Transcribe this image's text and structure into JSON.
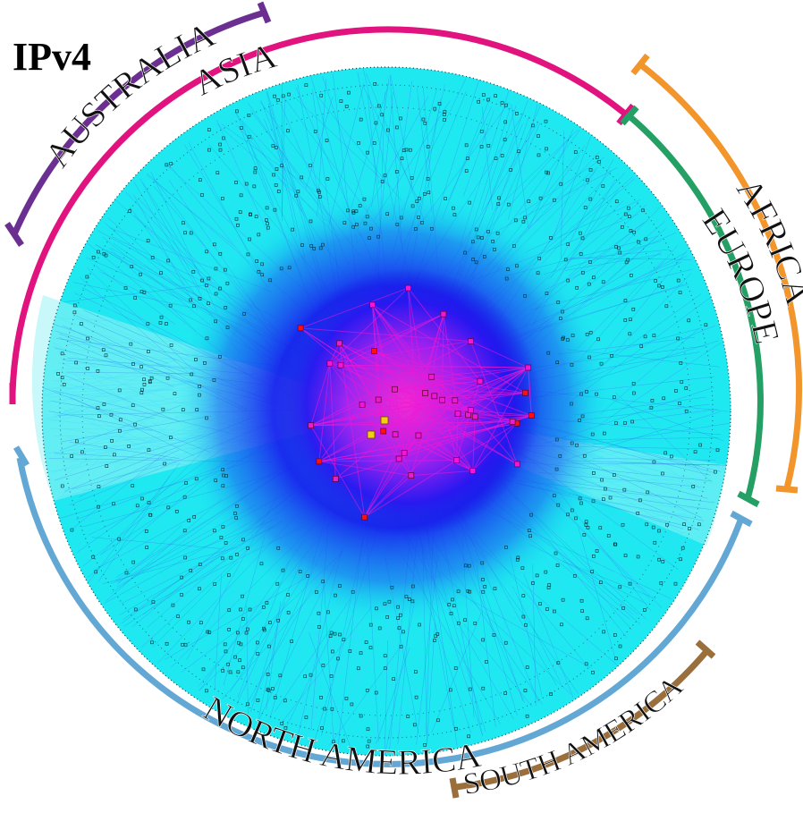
{
  "title": "IPv4",
  "regions": [
    {
      "id": "australia",
      "label": "AUSTRALIA",
      "color": "#6b2f92"
    },
    {
      "id": "asia",
      "label": "ASIA",
      "color": "#e0137f"
    },
    {
      "id": "africa",
      "label": "AFRICA",
      "color": "#f2952b"
    },
    {
      "id": "europe",
      "label": "EUROPE",
      "color": "#25a065"
    },
    {
      "id": "north_america",
      "label": "NORTH AMERICA",
      "color": "#63a8d4"
    },
    {
      "id": "south_america",
      "label": "SOUTH AMERICA",
      "color": "#9a6f3c"
    }
  ],
  "graph": {
    "layers": [
      "cyan",
      "blue",
      "purple",
      "magenta",
      "red",
      "yellow"
    ],
    "colors": {
      "cyan": "#16eef0",
      "blue": "#1717ee",
      "purple": "#7a10f0",
      "magenta": "#f018d6",
      "red": "#ff1010",
      "yellow": "#f0d010"
    }
  }
}
